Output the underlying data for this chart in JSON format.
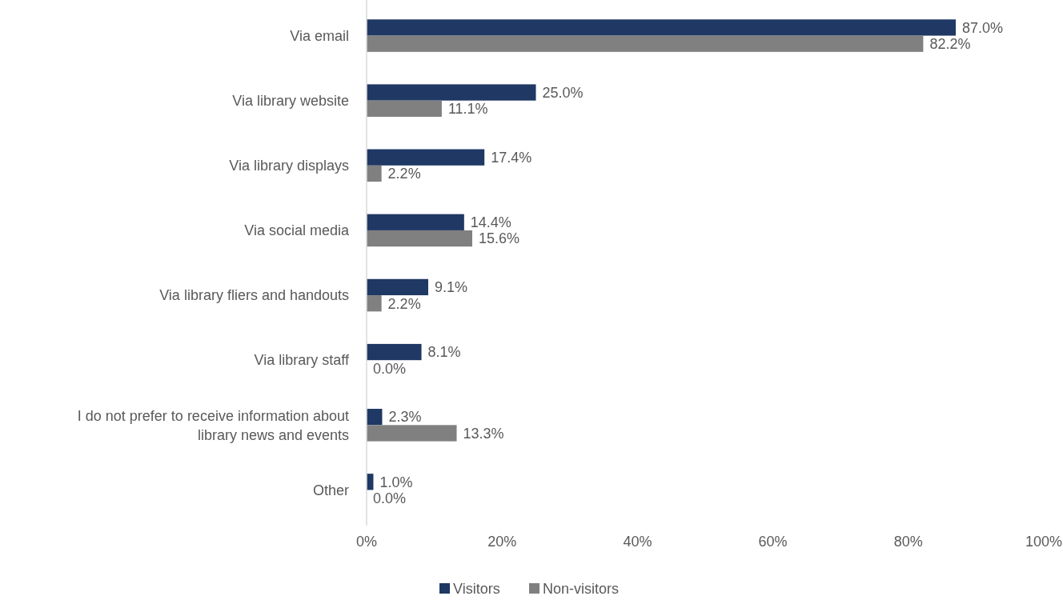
{
  "chart_data": {
    "type": "bar",
    "orientation": "horizontal",
    "categories": [
      "Via email",
      "Via library website",
      "Via library displays",
      "Via social media",
      "Via library fliers and handouts",
      "Via library staff",
      "I do not prefer to receive information about library news and events",
      "Other"
    ],
    "series": [
      {
        "name": "Visitors",
        "color": "#1f3864",
        "values": [
          87.0,
          25.0,
          17.4,
          14.4,
          9.1,
          8.1,
          2.3,
          1.0
        ],
        "value_labels": [
          "87.0%",
          "25.0%",
          "17.4%",
          "14.4%",
          "9.1%",
          "8.1%",
          "2.3%",
          "1.0%"
        ]
      },
      {
        "name": "Non-visitors",
        "color": "#808080",
        "values": [
          82.2,
          11.1,
          2.2,
          15.6,
          2.2,
          0.0,
          13.3,
          0.0
        ],
        "value_labels": [
          "82.2%",
          "11.1%",
          "2.2%",
          "15.6%",
          "2.2%",
          "0.0%",
          "13.3%",
          "0.0%"
        ]
      }
    ],
    "xlim": [
      0,
      100
    ],
    "xticks": [
      {
        "value": 0,
        "label": "0%"
      },
      {
        "value": 20,
        "label": "20%"
      },
      {
        "value": 40,
        "label": "40%"
      },
      {
        "value": 60,
        "label": "60%"
      },
      {
        "value": 80,
        "label": "80%"
      },
      {
        "value": 100,
        "label": "100%"
      }
    ],
    "grid": false,
    "legend": "bottom"
  }
}
